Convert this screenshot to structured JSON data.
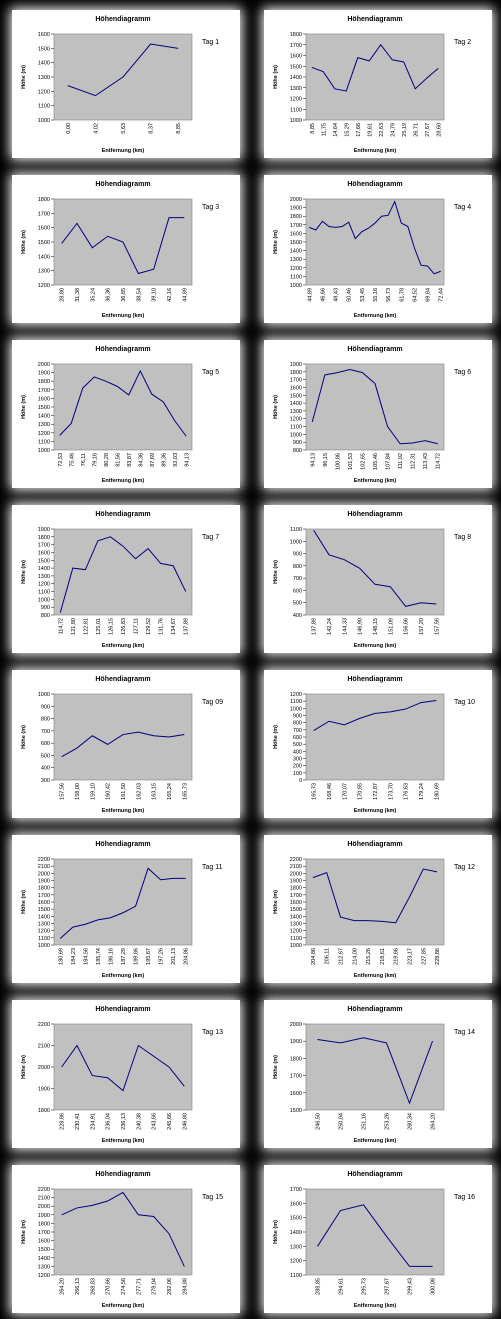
{
  "chart_data": [
    {
      "type": "line",
      "title": "Höhendiagramm",
      "annotation": "Tag 1",
      "x_label": "Entfernung (km)",
      "y_label": "Höhe (m)",
      "color": "#000080",
      "categories": [
        "0,00",
        "4,02",
        "5,63",
        "8,37",
        "8,85"
      ],
      "values": [
        1240,
        1170,
        1300,
        1530,
        1500
      ],
      "ylim": [
        1000,
        1600
      ],
      "yticks": [
        1000,
        1100,
        1200,
        1300,
        1400,
        1500,
        1600
      ]
    },
    {
      "type": "line",
      "title": "Höhendiagramm",
      "annotation": "Tag 2",
      "x_label": "Entfernung (km)",
      "y_label": "Höhe (m)",
      "color": "#000080",
      "categories": [
        "8,85",
        "11,75",
        "14,64",
        "15,29",
        "17,66",
        "19,61",
        "22,63",
        "24,79",
        "25,19",
        "26,71",
        "27,67",
        "28,60"
      ],
      "values": [
        1490,
        1450,
        1290,
        1270,
        1580,
        1550,
        1700,
        1560,
        1540,
        1290,
        1390,
        1480
      ],
      "ylim": [
        1000,
        1800
      ],
      "yticks": [
        1000,
        1100,
        1200,
        1300,
        1400,
        1500,
        1600,
        1700,
        1800
      ]
    },
    {
      "type": "line",
      "title": "Höhendiagramm",
      "annotation": "Tag 3",
      "x_label": "Entfernung (km)",
      "y_label": "Höhe (m)",
      "color": "#000080",
      "categories": [
        "28,80",
        "31,38",
        "35,24",
        "36,36",
        "36,85",
        "38,54",
        "39,10",
        "42,16",
        "44,89"
      ],
      "values": [
        1490,
        1630,
        1460,
        1540,
        1500,
        1280,
        1310,
        1670,
        1670
      ],
      "ylim": [
        1200,
        1800
      ],
      "yticks": [
        1200,
        1300,
        1400,
        1500,
        1600,
        1700,
        1800
      ]
    },
    {
      "type": "line",
      "title": "Höhendiagramm",
      "annotation": "Tag 4",
      "x_label": "Entfernung (km)",
      "y_label": "Höhe (m)",
      "color": "#000080",
      "categories": [
        "44,89",
        null,
        "46,66",
        null,
        "48,43",
        null,
        "50,46",
        null,
        "53,45",
        null,
        "55,16",
        null,
        "56,73",
        null,
        "61,78",
        null,
        "64,52",
        null,
        "69,84",
        null,
        "72,44"
      ],
      "values": [
        1670,
        1640,
        1740,
        1680,
        1670,
        1680,
        1730,
        1540,
        1620,
        1660,
        1720,
        1800,
        1810,
        1970,
        1720,
        1680,
        1430,
        1230,
        1220,
        1130,
        1160
      ],
      "ylim": [
        1000,
        2000
      ],
      "yticks": [
        1000,
        1100,
        1200,
        1300,
        1400,
        1500,
        1600,
        1700,
        1800,
        1900,
        2000
      ]
    },
    {
      "type": "line",
      "title": "Höhendiagramm",
      "annotation": "Tag 5",
      "x_label": "Entfernung (km)",
      "y_label": "Höhe (m)",
      "color": "#000080",
      "categories": [
        "72,53",
        "75,46",
        "76,11",
        "79,16",
        "80,28",
        "81,56",
        "83,87",
        "84,36",
        "87,69",
        "89,36",
        "92,03",
        "94,13"
      ],
      "values": [
        1170,
        1310,
        1720,
        1850,
        1800,
        1740,
        1640,
        1920,
        1650,
        1560,
        1340,
        1160
      ],
      "ylim": [
        1000,
        2000
      ],
      "yticks": [
        1000,
        1100,
        1200,
        1300,
        1400,
        1500,
        1600,
        1700,
        1800,
        1900,
        2000
      ]
    },
    {
      "type": "line",
      "title": "Höhendiagramm",
      "annotation": "Tag 6",
      "x_label": "Entfernung (km)",
      "y_label": "Höhe (m)",
      "color": "#000080",
      "categories": [
        "94,13",
        "96,15",
        "100,86",
        "101,53",
        "102,65",
        "105,46",
        "107,84",
        "111,02",
        "112,31",
        "113,43",
        "114,72"
      ],
      "values": [
        1160,
        1760,
        1790,
        1830,
        1790,
        1650,
        1100,
        880,
        890,
        920,
        880
      ],
      "ylim": [
        800,
        1900
      ],
      "yticks": [
        800,
        900,
        1000,
        1100,
        1200,
        1300,
        1400,
        1500,
        1600,
        1700,
        1800,
        1900
      ]
    },
    {
      "type": "line",
      "title": "Höhendiagramm",
      "annotation": "Tag 7",
      "x_label": "Entfernung (km)",
      "y_label": "Höhe (m)",
      "color": "#000080",
      "categories": [
        "114,72",
        "121,80",
        "122,81",
        "125,01",
        "126,15",
        "126,83",
        "127,11",
        "129,52",
        "131,76",
        "134,67",
        "137,89"
      ],
      "values": [
        830,
        1400,
        1380,
        1750,
        1800,
        1680,
        1520,
        1650,
        1460,
        1430,
        1100
      ],
      "ylim": [
        800,
        1900
      ],
      "yticks": [
        800,
        900,
        1000,
        1100,
        1200,
        1300,
        1400,
        1500,
        1600,
        1700,
        1800,
        1900
      ]
    },
    {
      "type": "line",
      "title": "Höhendiagramm",
      "annotation": "Tag 8",
      "x_label": "Entfernung (km)",
      "y_label": "Höhe (m)",
      "color": "#000080",
      "categories": [
        "137,89",
        "142,24",
        "144,33",
        "146,90",
        "148,15",
        "151,09",
        "156,66",
        "157,20",
        "157,56"
      ],
      "values": [
        1090,
        890,
        850,
        780,
        650,
        630,
        470,
        500,
        490
      ],
      "ylim": [
        400,
        1100
      ],
      "yticks": [
        400,
        500,
        600,
        700,
        800,
        900,
        1000,
        1100
      ]
    },
    {
      "type": "line",
      "title": "Höhendiagramm",
      "annotation": "Tag 09",
      "x_label": "Entfernung (km)",
      "y_label": "Höhe (m)",
      "color": "#000080",
      "categories": [
        "157,56",
        "158,00",
        "159,10",
        "160,42",
        "161,50",
        "162,03",
        "163,15",
        "165,24",
        "165,73"
      ],
      "values": [
        490,
        560,
        660,
        590,
        670,
        690,
        660,
        650,
        670
      ],
      "ylim": [
        300,
        1000
      ],
      "yticks": [
        300,
        400,
        500,
        600,
        700,
        800,
        900,
        1000
      ]
    },
    {
      "type": "line",
      "title": "Höhendiagramm",
      "annotation": "Tag 10",
      "x_label": "Entfernung (km)",
      "y_label": "Höhe (m)",
      "color": "#000080",
      "categories": [
        "165,73",
        "168,46",
        "170,07",
        "170,85",
        "172,87",
        "173,70",
        "176,63",
        "179,24",
        "180,69"
      ],
      "values": [
        690,
        820,
        770,
        860,
        930,
        950,
        990,
        1080,
        1110
      ],
      "ylim": [
        0,
        1200
      ],
      "yticks": [
        0,
        100,
        200,
        300,
        400,
        500,
        600,
        700,
        800,
        900,
        1000,
        1100,
        1200
      ]
    },
    {
      "type": "line",
      "title": "Höhendiagramm",
      "annotation": "Tag 11",
      "x_label": "Entfernung (km)",
      "y_label": "Höhe (m)",
      "color": "#000080",
      "categories": [
        "180,69",
        "184,23",
        "184,56",
        "185,74",
        "186,16",
        "187,29",
        "189,86",
        "195,67",
        "197,26",
        "201,13",
        "204,86"
      ],
      "values": [
        1090,
        1250,
        1290,
        1350,
        1380,
        1450,
        1540,
        2070,
        1910,
        1930,
        1930
      ],
      "ylim": [
        1000,
        2200
      ],
      "yticks": [
        1000,
        1100,
        1200,
        1300,
        1400,
        1500,
        1600,
        1700,
        1800,
        1900,
        2000,
        2100,
        2200
      ]
    },
    {
      "type": "line",
      "title": "Höhendiagramm",
      "annotation": "Tag 12",
      "x_label": "Entfernung (km)",
      "y_label": "Höhe (m)",
      "color": "#000080",
      "categories": [
        "204,86",
        "206,11",
        "212,67",
        "214,00",
        "215,26",
        "218,61",
        "219,66",
        "223,17",
        "227,85",
        "228,86"
      ],
      "values": [
        1940,
        2010,
        1390,
        1340,
        1340,
        1330,
        1310,
        1670,
        2060,
        2020
      ],
      "ylim": [
        1000,
        2200
      ],
      "yticks": [
        1000,
        1100,
        1200,
        1300,
        1400,
        1500,
        1600,
        1700,
        1800,
        1900,
        2000,
        2100,
        2200
      ]
    },
    {
      "type": "line",
      "title": "Höhendiagramm",
      "annotation": "Tag 13",
      "x_label": "Entfernung (km)",
      "y_label": "Höhe (m)",
      "color": "#000080",
      "categories": [
        "228,86",
        "230,41",
        "234,91",
        "236,04",
        "236,13",
        "240,38",
        "243,66",
        "245,66",
        "246,80"
      ],
      "values": [
        2000,
        2100,
        1960,
        1950,
        1890,
        2100,
        2050,
        2000,
        1910
      ],
      "ylim": [
        1800,
        2200
      ],
      "yticks": [
        1800,
        1900,
        2000,
        2100,
        2200
      ]
    },
    {
      "type": "line",
      "title": "Höhendiagramm",
      "annotation": "Tag 14",
      "x_label": "Entfernung (km)",
      "y_label": "Höhe (m)",
      "color": "#000080",
      "categories": [
        "246,50",
        "250,04",
        "251,16",
        "253,26",
        "260,34",
        "264,20"
      ],
      "values": [
        1910,
        1890,
        1920,
        1890,
        1540,
        1900
      ],
      "ylim": [
        1500,
        2000
      ],
      "yticks": [
        1500,
        1600,
        1700,
        1800,
        1900,
        2000
      ]
    },
    {
      "type": "line",
      "title": "Höhendiagramm",
      "annotation": "Tag 15",
      "x_label": "Entfernung (km)",
      "y_label": "Höhe (m)",
      "color": "#000080",
      "categories": [
        "264,20",
        "266,13",
        "268,83",
        "270,66",
        "274,56",
        "277,71",
        "278,04",
        "282,06",
        "284,88"
      ],
      "values": [
        1900,
        1980,
        2010,
        2060,
        2160,
        1900,
        1880,
        1680,
        1300
      ],
      "ylim": [
        1200,
        2200
      ],
      "yticks": [
        1200,
        1300,
        1400,
        1500,
        1600,
        1700,
        1800,
        1900,
        2000,
        2100,
        2200
      ]
    },
    {
      "type": "line",
      "title": "Höhendiagramm",
      "annotation": "Tag 16",
      "x_label": "Entfernung (km)",
      "y_label": "Höhe (m)",
      "color": "#000080",
      "categories": [
        "288,85",
        "294,61",
        "295,73",
        "297,67",
        "299,43",
        "300,08"
      ],
      "values": [
        1300,
        1550,
        1590,
        1370,
        1160,
        1160
      ],
      "ylim": [
        1100,
        1700
      ],
      "yticks": [
        1100,
        1200,
        1300,
        1400,
        1500,
        1600,
        1700
      ]
    }
  ]
}
